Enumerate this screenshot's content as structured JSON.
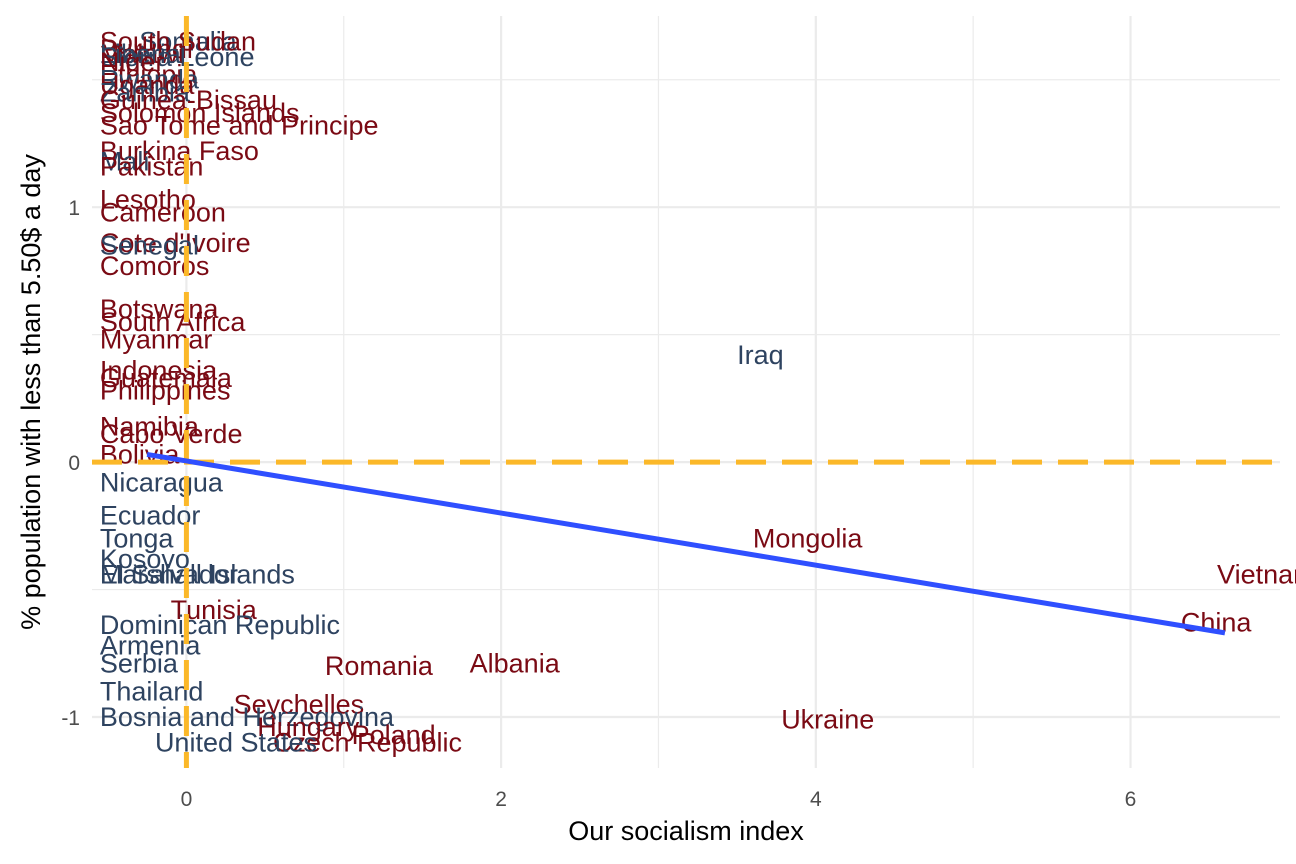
{
  "chart_data": {
    "type": "scatter",
    "xlabel": "Our socialism index",
    "ylabel": "% population with less than 5.50$ a day",
    "xlim": [
      -0.6,
      6.95
    ],
    "ylim": [
      -1.2,
      1.75
    ],
    "xticks": [
      0,
      2,
      4,
      6
    ],
    "yticks": [
      -1,
      0,
      1
    ],
    "grid": true,
    "reference_lines": {
      "x": 0,
      "y": 0,
      "color": "#FBB829"
    },
    "trend_line": {
      "x": [
        -0.25,
        6.6
      ],
      "y": [
        0.03,
        -0.67
      ],
      "color": "#2F4FFF"
    },
    "colors": {
      "socialist": "#7A0A14",
      "non_socialist": "#2E4360"
    },
    "points": [
      {
        "label": "Somalia",
        "x": -0.3,
        "y": 1.65,
        "group": "non_socialist"
      },
      {
        "label": "South Sudan",
        "x": -0.55,
        "y": 1.65,
        "group": "socialist"
      },
      {
        "label": "Burundi",
        "x": -0.55,
        "y": 1.62,
        "group": "socialist"
      },
      {
        "label": "Malawi",
        "x": -0.55,
        "y": 1.6,
        "group": "socialist"
      },
      {
        "label": "Sierra Leone",
        "x": -0.55,
        "y": 1.59,
        "group": "non_socialist"
      },
      {
        "label": "Liberia",
        "x": -0.55,
        "y": 1.6,
        "group": "non_socialist"
      },
      {
        "label": "Niger",
        "x": -0.55,
        "y": 1.57,
        "group": "socialist"
      },
      {
        "label": "Ethiopia",
        "x": -0.55,
        "y": 1.52,
        "group": "socialist"
      },
      {
        "label": "Rwanda",
        "x": -0.55,
        "y": 1.5,
        "group": "non_socialist"
      },
      {
        "label": "Uganda",
        "x": -0.55,
        "y": 1.48,
        "group": "socialist"
      },
      {
        "label": "Zambia",
        "x": -0.55,
        "y": 1.45,
        "group": "non_socialist"
      },
      {
        "label": "Guinea-Bissau",
        "x": -0.55,
        "y": 1.42,
        "group": "socialist"
      },
      {
        "label": "Solomon Islands",
        "x": -0.55,
        "y": 1.37,
        "group": "socialist"
      },
      {
        "label": "Sao Tome and Principe",
        "x": -0.55,
        "y": 1.32,
        "group": "socialist"
      },
      {
        "label": "Burkina Faso",
        "x": -0.55,
        "y": 1.22,
        "group": "socialist"
      },
      {
        "label": "Mali",
        "x": -0.55,
        "y": 1.18,
        "group": "non_socialist"
      },
      {
        "label": "Pakistan",
        "x": -0.55,
        "y": 1.16,
        "group": "socialist"
      },
      {
        "label": "Lesotho",
        "x": -0.55,
        "y": 1.03,
        "group": "socialist"
      },
      {
        "label": "Cameroon",
        "x": -0.55,
        "y": 0.98,
        "group": "socialist"
      },
      {
        "label": "Cote d'Ivoire",
        "x": -0.55,
        "y": 0.86,
        "group": "socialist"
      },
      {
        "label": "Senegal",
        "x": -0.55,
        "y": 0.85,
        "group": "non_socialist"
      },
      {
        "label": "Comoros",
        "x": -0.55,
        "y": 0.77,
        "group": "socialist"
      },
      {
        "label": "Botswana",
        "x": -0.55,
        "y": 0.6,
        "group": "socialist"
      },
      {
        "label": "South Africa",
        "x": -0.55,
        "y": 0.55,
        "group": "socialist"
      },
      {
        "label": "Myanmar",
        "x": -0.55,
        "y": 0.48,
        "group": "socialist"
      },
      {
        "label": "Indonesia",
        "x": -0.55,
        "y": 0.36,
        "group": "socialist"
      },
      {
        "label": "Guatemala",
        "x": -0.55,
        "y": 0.33,
        "group": "socialist"
      },
      {
        "label": "Philippines",
        "x": -0.55,
        "y": 0.28,
        "group": "socialist"
      },
      {
        "label": "Namibia",
        "x": -0.55,
        "y": 0.14,
        "group": "socialist"
      },
      {
        "label": "Cabo Verde",
        "x": -0.55,
        "y": 0.11,
        "group": "socialist"
      },
      {
        "label": "Bolivia",
        "x": -0.55,
        "y": 0.03,
        "group": "socialist"
      },
      {
        "label": "Iraq",
        "x": 3.5,
        "y": 0.42,
        "group": "non_socialist"
      },
      {
        "label": "Nicaragua",
        "x": -0.55,
        "y": -0.08,
        "group": "non_socialist"
      },
      {
        "label": "Ecuador",
        "x": -0.55,
        "y": -0.21,
        "group": "non_socialist"
      },
      {
        "label": "Tonga",
        "x": -0.55,
        "y": -0.3,
        "group": "non_socialist"
      },
      {
        "label": "Kosovo",
        "x": -0.55,
        "y": -0.38,
        "group": "non_socialist"
      },
      {
        "label": "El Salvador",
        "x": -0.55,
        "y": -0.44,
        "group": "non_socialist"
      },
      {
        "label": "Marshall Islands",
        "x": -0.55,
        "y": -0.44,
        "group": "non_socialist"
      },
      {
        "label": "Mongolia",
        "x": 3.6,
        "y": -0.3,
        "group": "socialist"
      },
      {
        "label": "Vietnam",
        "x": 6.55,
        "y": -0.44,
        "group": "socialist"
      },
      {
        "label": "China",
        "x": 6.32,
        "y": -0.63,
        "group": "socialist"
      },
      {
        "label": "Tunisia",
        "x": -0.1,
        "y": -0.58,
        "group": "socialist"
      },
      {
        "label": "Dominican Republic",
        "x": -0.55,
        "y": -0.64,
        "group": "non_socialist"
      },
      {
        "label": "Armenia",
        "x": -0.55,
        "y": -0.72,
        "group": "non_socialist"
      },
      {
        "label": "Serbia",
        "x": -0.55,
        "y": -0.79,
        "group": "non_socialist"
      },
      {
        "label": "Romania",
        "x": 0.88,
        "y": -0.8,
        "group": "socialist"
      },
      {
        "label": "Albania",
        "x": 1.8,
        "y": -0.79,
        "group": "socialist"
      },
      {
        "label": "Thailand",
        "x": -0.55,
        "y": -0.9,
        "group": "non_socialist"
      },
      {
        "label": "Seychelles",
        "x": 0.3,
        "y": -0.95,
        "group": "socialist"
      },
      {
        "label": "Bosnia and Herzegovina",
        "x": -0.55,
        "y": -1.0,
        "group": "non_socialist"
      },
      {
        "label": "Hungary",
        "x": 0.45,
        "y": -1.04,
        "group": "socialist"
      },
      {
        "label": "Poland",
        "x": 1.05,
        "y": -1.07,
        "group": "socialist"
      },
      {
        "label": "Czech Republic",
        "x": 0.55,
        "y": -1.1,
        "group": "socialist"
      },
      {
        "label": "United States",
        "x": -0.2,
        "y": -1.1,
        "group": "non_socialist"
      },
      {
        "label": "Ukraine",
        "x": 3.78,
        "y": -1.01,
        "group": "socialist"
      }
    ]
  }
}
